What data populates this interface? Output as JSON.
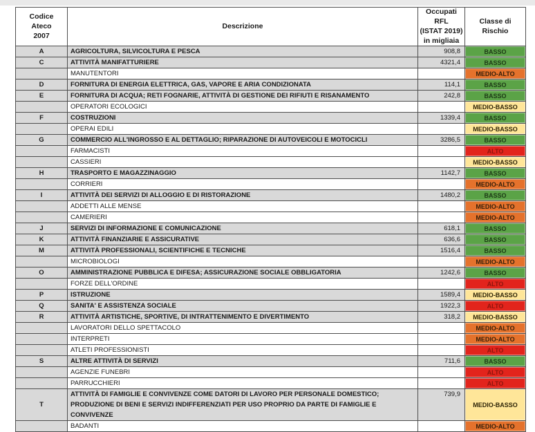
{
  "page": {
    "top_strip_color": "#e9e9e9",
    "background": "#ffffff"
  },
  "row_colors": {
    "category_bg": "#d9d9d9",
    "sub_bg": "#ffffff",
    "code_col_bg": "#d9d9d9"
  },
  "risk_styles": {
    "BASSO": {
      "bg": "#5ba347",
      "fg": "#1e3a17"
    },
    "MEDIO-BASSO": {
      "bg": "#ffe699",
      "fg": "#2f2508"
    },
    "MEDIO-ALTO": {
      "bg": "#e5722c",
      "fg": "#37200a"
    },
    "ALTO": {
      "bg": "#e2241c",
      "fg": "#8e150d"
    }
  },
  "table": {
    "columns": [
      {
        "label": "Codice\nAteco\n2007"
      },
      {
        "label": "Descrizione"
      },
      {
        "label": "Occupati RFL\n(ISTAT 2019)\nin migliaia"
      },
      {
        "label": "Classe di\nRischio"
      }
    ],
    "rows": [
      {
        "code": "A",
        "desc": "AGRICOLTURA, SILVICOLTURA E PESCA",
        "occ": "908,8",
        "risk": "BASSO",
        "category": true
      },
      {
        "code": "C",
        "desc": "ATTIVITÀ MANIFATTURIERE",
        "occ": "4321,4",
        "risk": "BASSO",
        "category": true
      },
      {
        "code": "",
        "desc": "MANUTENTORI",
        "occ": "",
        "risk": "MEDIO-ALTO",
        "category": false
      },
      {
        "code": "D",
        "desc": "FORNITURA DI ENERGIA ELETTRICA, GAS, VAPORE E ARIA CONDIZIONATA",
        "occ": "114,1",
        "risk": "BASSO",
        "category": true
      },
      {
        "code": "E",
        "desc": "FORNITURA DI ACQUA; RETI FOGNARIE, ATTIVITÀ DI GESTIONE DEI RIFIUTI E RISANAMENTO",
        "occ": "242,8",
        "risk": "BASSO",
        "category": true
      },
      {
        "code": "",
        "desc": "OPERATORI ECOLOGICI",
        "occ": "",
        "risk": "MEDIO-BASSO",
        "category": false
      },
      {
        "code": "F",
        "desc": "COSTRUZIONI",
        "occ": "1339,4",
        "risk": "BASSO",
        "category": true
      },
      {
        "code": "",
        "desc": "OPERAI EDILI",
        "occ": "",
        "risk": "MEDIO-BASSO",
        "category": false
      },
      {
        "code": "G",
        "desc": "COMMERCIO ALL'INGROSSO E AL DETTAGLIO; RIPARAZIONE DI AUTOVEICOLI E MOTOCICLI",
        "occ": "3286,5",
        "risk": "BASSO",
        "category": true
      },
      {
        "code": "",
        "desc": "FARMACISTI",
        "occ": "",
        "risk": "ALTO",
        "category": false
      },
      {
        "code": "",
        "desc": "CASSIERI",
        "occ": "",
        "risk": "MEDIO-BASSO",
        "category": false
      },
      {
        "code": "H",
        "desc": "TRASPORTO E MAGAZZINAGGIO",
        "occ": "1142,7",
        "risk": "BASSO",
        "category": true
      },
      {
        "code": "",
        "desc": "CORRIERI",
        "occ": "",
        "risk": "MEDIO-ALTO",
        "category": false
      },
      {
        "code": "I",
        "desc": "ATTIVITÀ DEI SERVIZI DI ALLOGGIO E DI RISTORAZIONE",
        "occ": "1480,2",
        "risk": "BASSO",
        "category": true
      },
      {
        "code": "",
        "desc": "ADDETTI ALLE MENSE",
        "occ": "",
        "risk": "MEDIO-ALTO",
        "category": false
      },
      {
        "code": "",
        "desc": "CAMERIERI",
        "occ": "",
        "risk": "MEDIO-ALTO",
        "category": false
      },
      {
        "code": "J",
        "desc": "SERVIZI DI INFORMAZIONE E COMUNICAZIONE",
        "occ": "618,1",
        "risk": "BASSO",
        "category": true
      },
      {
        "code": "K",
        "desc": "ATTIVITÀ FINANZIARIE E ASSICURATIVE",
        "occ": "636,6",
        "risk": "BASSO",
        "category": true
      },
      {
        "code": "M",
        "desc": "ATTIVITÀ PROFESSIONALI, SCIENTIFICHE E TECNICHE",
        "occ": "1516,4",
        "risk": "BASSO",
        "category": true
      },
      {
        "code": "",
        "desc": "MICROBIOLOGI",
        "occ": "",
        "risk": "MEDIO-ALTO",
        "category": false
      },
      {
        "code": "O",
        "desc": "AMMINISTRAZIONE PUBBLICA E DIFESA; ASSICURAZIONE SOCIALE OBBLIGATORIA",
        "occ": "1242,6",
        "risk": "BASSO",
        "category": true
      },
      {
        "code": "",
        "desc": "FORZE DELL'ORDINE",
        "occ": "",
        "risk": "ALTO",
        "category": false
      },
      {
        "code": "P",
        "desc": "ISTRUZIONE",
        "occ": "1589,4",
        "risk": "MEDIO-BASSO",
        "category": true
      },
      {
        "code": "Q",
        "desc": "SANITA' E ASSISTENZA SOCIALE",
        "occ": "1922,3",
        "risk": "ALTO",
        "category": true
      },
      {
        "code": "R",
        "desc": "ATTIVITÀ ARTISTICHE, SPORTIVE, DI INTRATTENIMENTO E DIVERTIMENTO",
        "occ": "318,2",
        "risk": "MEDIO-BASSO",
        "category": true
      },
      {
        "code": "",
        "desc": "LAVORATORI DELLO SPETTACOLO",
        "occ": "",
        "risk": "MEDIO-ALTO",
        "category": false
      },
      {
        "code": "",
        "desc": "INTERPRETI",
        "occ": "",
        "risk": "MEDIO-ALTO",
        "category": false
      },
      {
        "code": "",
        "desc": "ATLETI PROFESSIONISTI",
        "occ": "",
        "risk": "ALTO",
        "category": false
      },
      {
        "code": "S",
        "desc": "ALTRE ATTIVITÀ DI SERVIZI",
        "occ": "711,6",
        "risk": "BASSO",
        "category": true
      },
      {
        "code": "",
        "desc": "AGENZIE FUNEBRI",
        "occ": "",
        "risk": "ALTO",
        "category": false
      },
      {
        "code": "",
        "desc": "PARRUCCHIERI",
        "occ": "",
        "risk": "ALTO",
        "category": false
      },
      {
        "code": "T",
        "desc": "ATTIVITÀ DI FAMIGLIE E CONVIVENZE COME DATORI DI LAVORO PER PERSONALE DOMESTICO; PRODUZIONE DI BENI E SERVIZI INDIFFERENZIATI PER USO PROPRIO  DA PARTE DI FAMIGLIE E CONVIVENZE",
        "occ": "739,9",
        "risk": "MEDIO-BASSO",
        "category": true,
        "tall": true
      },
      {
        "code": "",
        "desc": "BADANTI",
        "occ": "",
        "risk": "MEDIO-ALTO",
        "category": false
      }
    ]
  }
}
